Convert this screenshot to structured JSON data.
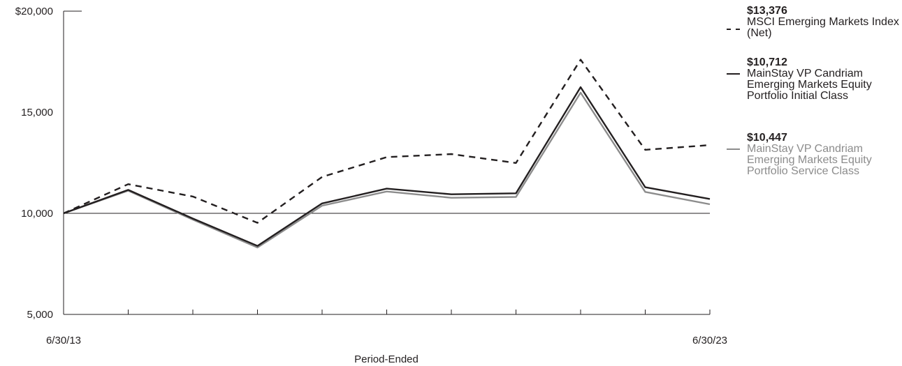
{
  "chart_data": {
    "type": "line",
    "x_tick_labels": [
      "6/30/13",
      "6/30/23"
    ],
    "xlabel": "Period-Ended",
    "y_tick_labels": [
      "$20,000",
      "15,000",
      "10,000",
      "5,000"
    ],
    "y_ticks": [
      20000,
      15000,
      10000,
      5000
    ],
    "ylim": [
      5000,
      20000
    ],
    "reference_line": 10000,
    "x_points": 11,
    "series": [
      {
        "name": "MSCI Emerging Markets Index (Net)",
        "ending_value_label": "$13,376",
        "style": "dashed",
        "color": "#231f20",
        "values": [
          10000,
          11440,
          10830,
          9530,
          11800,
          12780,
          12930,
          12490,
          17600,
          13140,
          13376
        ]
      },
      {
        "name": "MainStay VP Candriam Emerging Markets Equity Portfolio Initial Class",
        "ending_value_label": "$10,712",
        "style": "solid",
        "color": "#231f20",
        "values": [
          10000,
          11160,
          9740,
          8390,
          10490,
          11220,
          10940,
          10990,
          16240,
          11290,
          10712
        ]
      },
      {
        "name": "MainStay VP Candriam Emerging Markets Equity Portfolio Service Class",
        "ending_value_label": "$10,447",
        "style": "solid",
        "color": "#8c8c8c",
        "values": [
          10000,
          11120,
          9690,
          8310,
          10380,
          11080,
          10770,
          10810,
          15970,
          11060,
          10447
        ]
      }
    ]
  }
}
